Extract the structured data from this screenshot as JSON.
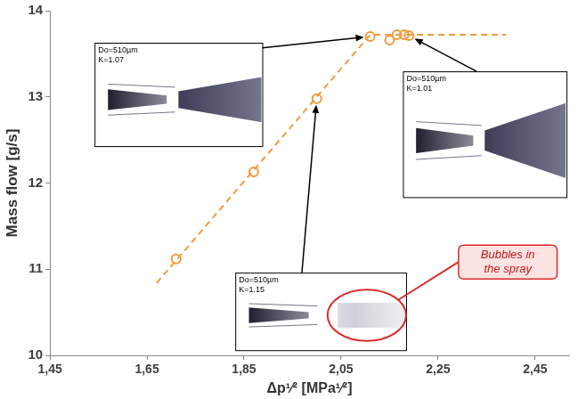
{
  "chart_data": {
    "type": "scatter",
    "x_label": "Δp¹⁄² [MPa¹⁄²]",
    "y_label": "Mass flow [g/s]",
    "series": [
      {
        "type": "scatter",
        "color": "#f39a3c",
        "marker": "circle",
        "x": [
          1.71,
          1.87,
          2.0,
          2.11,
          2.15,
          2.165,
          2.18,
          2.19
        ],
        "values": [
          11.12,
          12.13,
          12.98,
          13.7,
          13.66,
          13.72,
          13.72,
          13.71
        ]
      },
      {
        "type": "line",
        "color": "#f39a3c",
        "line_style": "dashed",
        "x": [
          1.67,
          2.11,
          2.39
        ],
        "values": [
          10.84,
          13.72,
          13.72
        ]
      }
    ],
    "xlim": [
      1.45,
      2.52
    ],
    "xticks": [
      {
        "value": 1.45,
        "label": "1,45"
      },
      {
        "value": 1.65,
        "label": "1,65"
      },
      {
        "value": 1.85,
        "label": "1,85"
      },
      {
        "value": 2.05,
        "label": "2,05"
      },
      {
        "value": 2.25,
        "label": "2,25"
      },
      {
        "value": 2.45,
        "label": "2,45"
      }
    ],
    "ylim": [
      10,
      14
    ],
    "yticks": [
      10,
      11,
      12,
      13,
      14
    ],
    "grid": false,
    "annotations": [
      {
        "text": [
          "Do=510µm",
          "K=1.07"
        ],
        "x": 2.11,
        "y": 13.7
      },
      {
        "text": [
          "Do=510µm",
          "K=1.01"
        ],
        "x": 2.19,
        "y": 13.71
      },
      {
        "text": [
          "Do=510µm",
          "K=1.15"
        ],
        "x": 2.0,
        "y": 12.98
      },
      {
        "text": "Bubbles in the spray"
      }
    ]
  }
}
